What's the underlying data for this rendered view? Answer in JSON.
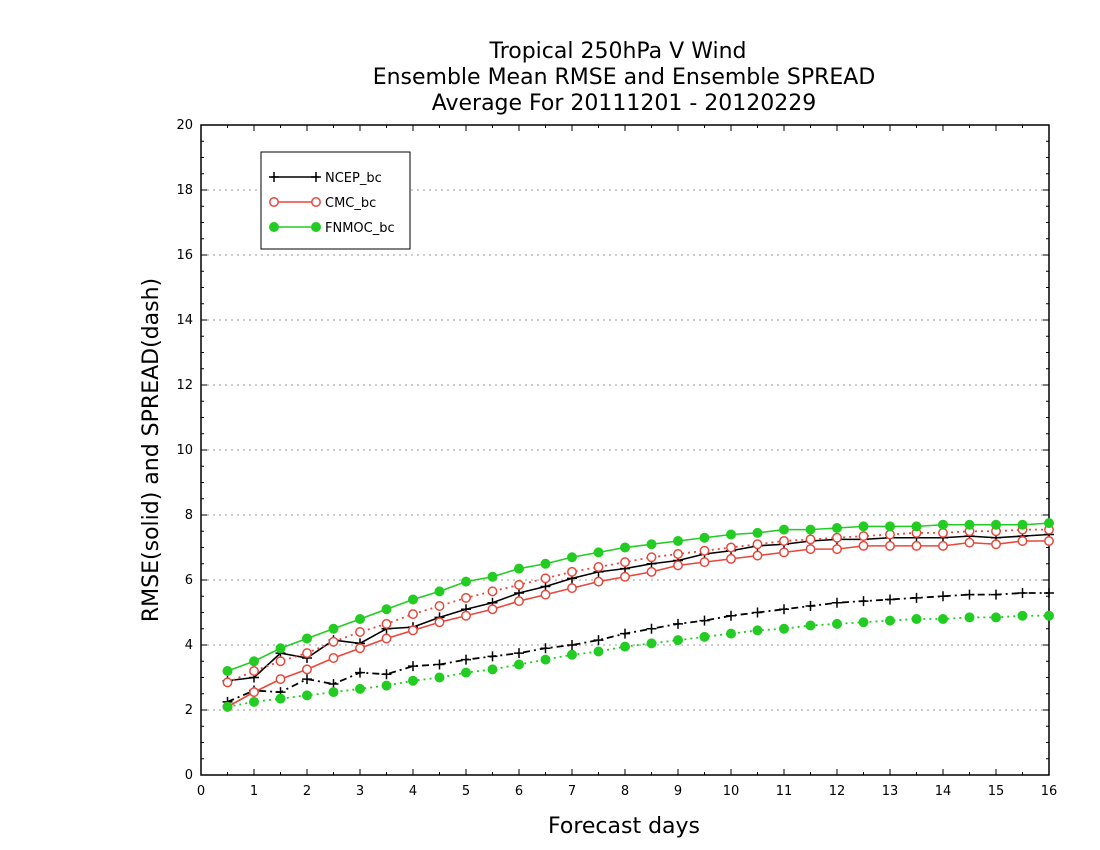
{
  "chart_data": {
    "type": "line",
    "title": [
      "Tropical 250hPa V Wind",
      "Ensemble Mean RMSE and Ensemble SPREAD",
      "Average For 20111201 - 20120229"
    ],
    "xlabel": "Forecast days",
    "ylabel": "RMSE(solid) and SPREAD(dash)",
    "xlim": [
      0,
      16
    ],
    "ylim": [
      0,
      20
    ],
    "xticks": [
      "0",
      "1",
      "2",
      "3",
      "4",
      "5",
      "6",
      "7",
      "8",
      "9",
      "10",
      "11",
      "12",
      "13",
      "14",
      "15",
      "16"
    ],
    "yticks": [
      "0",
      "2",
      "4",
      "6",
      "8",
      "10",
      "12",
      "14",
      "16",
      "18",
      "20"
    ],
    "grid": "horizontal dotted",
    "legend_position": "top-left",
    "legend": [
      {
        "label": "NCEP_bc",
        "color": "#000000",
        "marker": "plus"
      },
      {
        "label": "CMC_bc",
        "color": "#e8473c",
        "marker": "open-circle"
      },
      {
        "label": "FNMOC_bc",
        "color": "#22cc22",
        "marker": "filled-circle"
      }
    ],
    "x": [
      0.5,
      1,
      1.5,
      2,
      2.5,
      3,
      3.5,
      4,
      4.5,
      5,
      5.5,
      6,
      6.5,
      7,
      7.5,
      8,
      8.5,
      9,
      9.5,
      10,
      10.5,
      11,
      11.5,
      12,
      12.5,
      13,
      13.5,
      14,
      14.5,
      15,
      15.5,
      16
    ],
    "series": [
      {
        "name": "NCEP_bc",
        "kind": "RMSE",
        "style": "solid",
        "color": "#000000",
        "marker": "plus",
        "values": [
          2.9,
          3.0,
          3.75,
          3.6,
          4.15,
          4.05,
          4.5,
          4.55,
          4.85,
          5.1,
          5.3,
          5.6,
          5.8,
          6.05,
          6.25,
          6.35,
          6.5,
          6.6,
          6.8,
          6.9,
          7.05,
          7.1,
          7.2,
          7.25,
          7.25,
          7.3,
          7.3,
          7.3,
          7.35,
          7.3,
          7.35,
          7.4
        ]
      },
      {
        "name": "NCEP_bc",
        "kind": "SPREAD",
        "style": "dashdot",
        "color": "#000000",
        "marker": "plus",
        "values": [
          2.25,
          2.6,
          2.55,
          2.95,
          2.8,
          3.15,
          3.1,
          3.35,
          3.4,
          3.55,
          3.65,
          3.75,
          3.9,
          4.0,
          4.15,
          4.35,
          4.5,
          4.65,
          4.75,
          4.9,
          5.0,
          5.1,
          5.2,
          5.3,
          5.35,
          5.4,
          5.45,
          5.5,
          5.55,
          5.55,
          5.6,
          5.6
        ]
      },
      {
        "name": "CMC_bc",
        "kind": "RMSE",
        "style": "solid",
        "color": "#e8473c",
        "marker": "open-circle",
        "values": [
          2.1,
          2.55,
          2.95,
          3.25,
          3.6,
          3.9,
          4.2,
          4.45,
          4.7,
          4.9,
          5.1,
          5.35,
          5.55,
          5.75,
          5.95,
          6.1,
          6.25,
          6.45,
          6.55,
          6.65,
          6.75,
          6.85,
          6.95,
          6.95,
          7.05,
          7.05,
          7.05,
          7.05,
          7.15,
          7.1,
          7.2,
          7.2
        ]
      },
      {
        "name": "CMC_bc",
        "kind": "SPREAD",
        "style": "dotted",
        "color": "#e8473c",
        "marker": "open-circle",
        "values": [
          2.85,
          3.2,
          3.5,
          3.75,
          4.1,
          4.4,
          4.65,
          4.95,
          5.2,
          5.45,
          5.65,
          5.85,
          6.05,
          6.25,
          6.4,
          6.55,
          6.7,
          6.8,
          6.9,
          7.0,
          7.1,
          7.2,
          7.25,
          7.3,
          7.35,
          7.4,
          7.45,
          7.45,
          7.5,
          7.5,
          7.55,
          7.55
        ]
      },
      {
        "name": "FNMOC_bc",
        "kind": "RMSE",
        "style": "solid",
        "color": "#22cc22",
        "marker": "filled-circle",
        "values": [
          3.2,
          3.5,
          3.9,
          4.2,
          4.5,
          4.8,
          5.1,
          5.4,
          5.65,
          5.95,
          6.1,
          6.35,
          6.5,
          6.7,
          6.85,
          7.0,
          7.1,
          7.2,
          7.3,
          7.4,
          7.45,
          7.55,
          7.55,
          7.6,
          7.65,
          7.65,
          7.65,
          7.7,
          7.7,
          7.7,
          7.7,
          7.75
        ]
      },
      {
        "name": "FNMOC_bc",
        "kind": "SPREAD",
        "style": "dotted",
        "color": "#22cc22",
        "marker": "filled-circle",
        "values": [
          2.1,
          2.25,
          2.35,
          2.45,
          2.55,
          2.65,
          2.75,
          2.9,
          3.0,
          3.15,
          3.25,
          3.4,
          3.55,
          3.7,
          3.8,
          3.95,
          4.05,
          4.15,
          4.25,
          4.35,
          4.45,
          4.5,
          4.6,
          4.65,
          4.7,
          4.75,
          4.8,
          4.8,
          4.85,
          4.85,
          4.9,
          4.9
        ]
      }
    ]
  }
}
